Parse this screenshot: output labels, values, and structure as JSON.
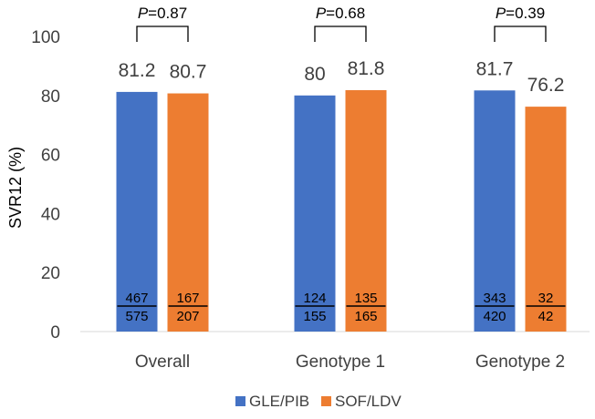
{
  "chart_data": {
    "type": "bar",
    "ylabel": "SVR12 (%)",
    "ylim": [
      0,
      100
    ],
    "yticks": [
      0,
      20,
      40,
      60,
      80,
      100
    ],
    "grid": false,
    "legend_position": "bottom",
    "categories": [
      "Overall",
      "Genotype 1",
      "Genotype 2"
    ],
    "series": [
      {
        "name": "GLE/PIB",
        "color": "#4472C4",
        "values": [
          81.2,
          80,
          81.7
        ],
        "labels": [
          "81.2",
          "80",
          "81.7"
        ],
        "numerators": [
          "467",
          "124",
          "343"
        ],
        "denominators": [
          "575",
          "155",
          "420"
        ]
      },
      {
        "name": "SOF/LDV",
        "color": "#ED7D31",
        "values": [
          80.7,
          81.8,
          76.2
        ],
        "labels": [
          "80.7",
          "81.8",
          "76.2"
        ],
        "numerators": [
          "167",
          "135",
          "32"
        ],
        "denominators": [
          "207",
          "165",
          "42"
        ]
      }
    ],
    "p_prefix": "P",
    "p_values": [
      "=0.87",
      "=0.68",
      "=0.39"
    ]
  }
}
